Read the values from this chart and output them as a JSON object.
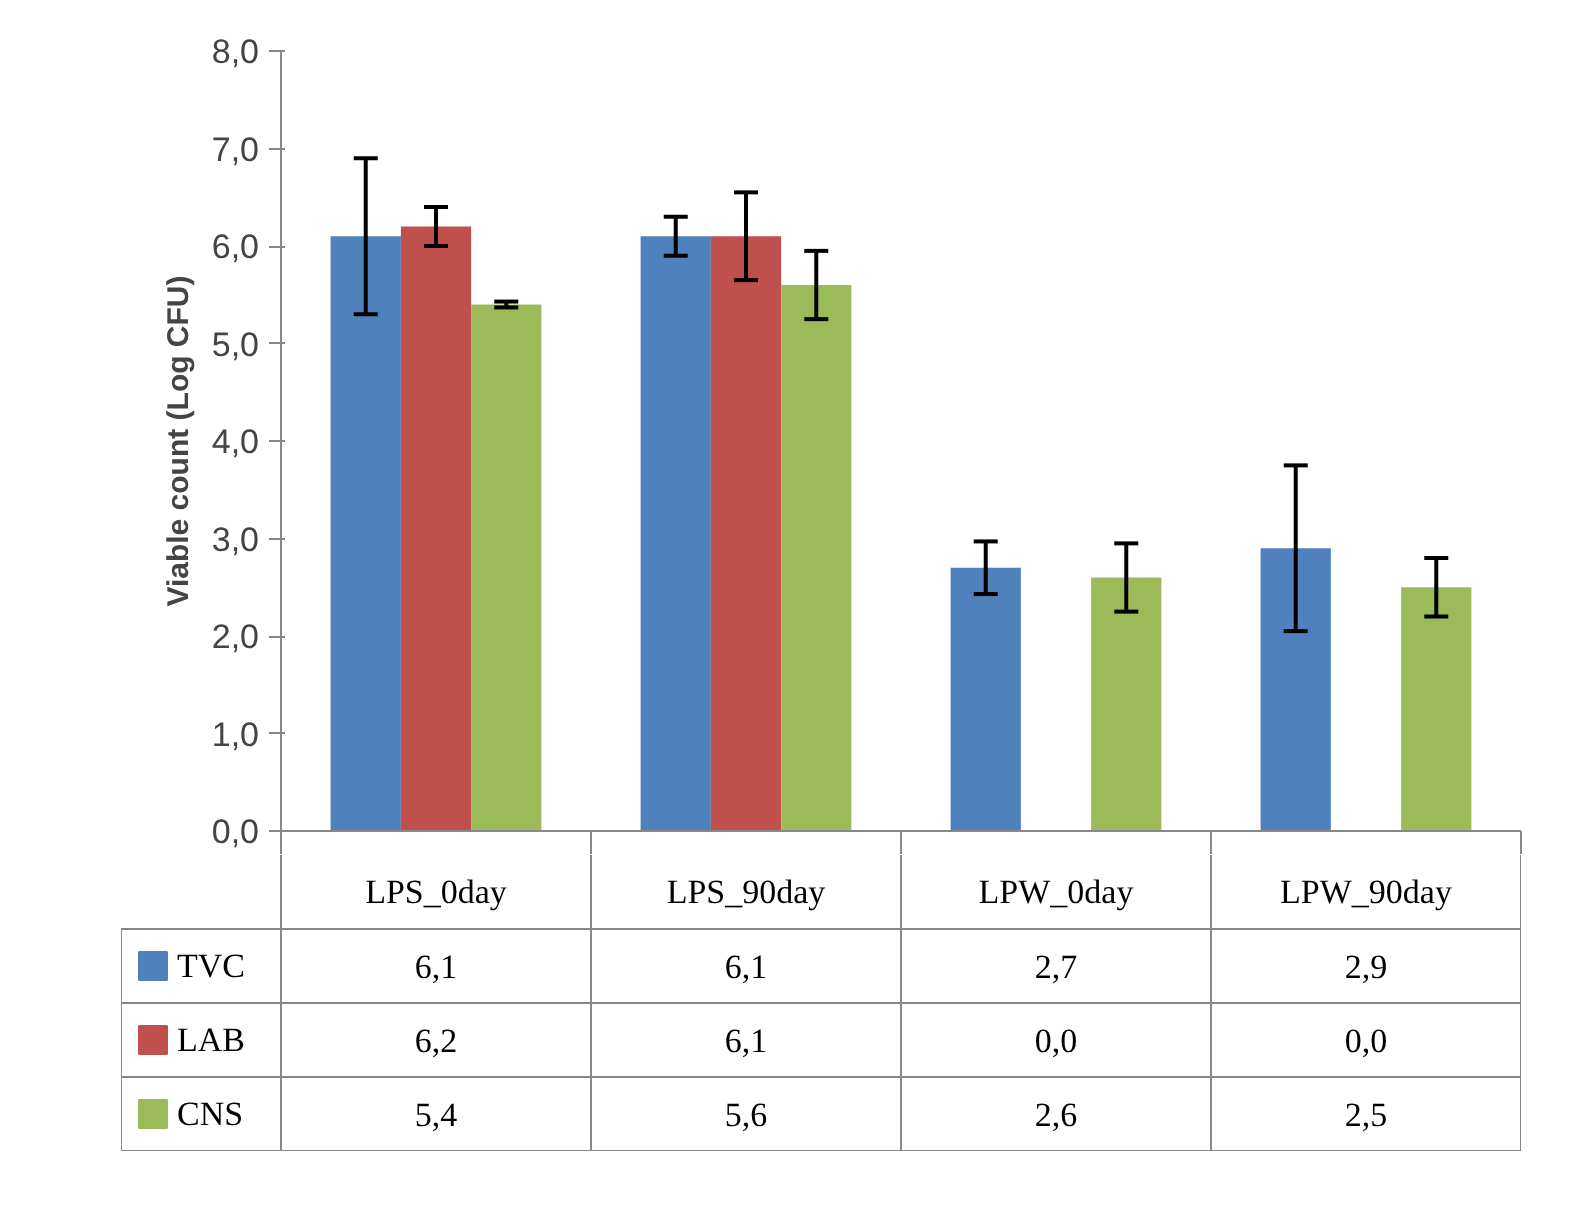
{
  "chart_data": {
    "type": "bar",
    "ylabel": "Viable count (Log CFU)",
    "categories": [
      "LPS_0day",
      "LPS_90day",
      "LPW_0day",
      "LPW_90day"
    ],
    "ylim": [
      0,
      8
    ],
    "yticks": [
      {
        "value": 0,
        "label": "0,0"
      },
      {
        "value": 1,
        "label": "1,0"
      },
      {
        "value": 2,
        "label": "2,0"
      },
      {
        "value": 3,
        "label": "3,0"
      },
      {
        "value": 4,
        "label": "4,0"
      },
      {
        "value": 5,
        "label": "5,0"
      },
      {
        "value": 6,
        "label": "6,0"
      },
      {
        "value": 7,
        "label": "7,0"
      },
      {
        "value": 8,
        "label": "8,0"
      }
    ],
    "series": [
      {
        "name": "TVC",
        "color": "#4f81bd",
        "values": [
          6.1,
          6.1,
          2.7,
          2.9
        ],
        "errors": [
          0.8,
          0.2,
          0.27,
          0.85
        ],
        "value_labels": [
          "6,1",
          "6,1",
          "2,7",
          "2,9"
        ]
      },
      {
        "name": "LAB",
        "color": "#c0504d",
        "values": [
          6.2,
          6.1,
          0.0,
          0.0
        ],
        "errors": [
          0.2,
          0.45,
          null,
          null
        ],
        "value_labels": [
          "6,2",
          "6,1",
          "0,0",
          "0,0"
        ]
      },
      {
        "name": "CNS",
        "color": "#9bbb59",
        "values": [
          5.4,
          5.6,
          2.6,
          2.5
        ],
        "errors": [
          0.03,
          0.35,
          0.35,
          0.3
        ],
        "value_labels": [
          "5,4",
          "5,6",
          "2,6",
          "2,5"
        ]
      }
    ],
    "legend": "bottom",
    "grid": false
  }
}
